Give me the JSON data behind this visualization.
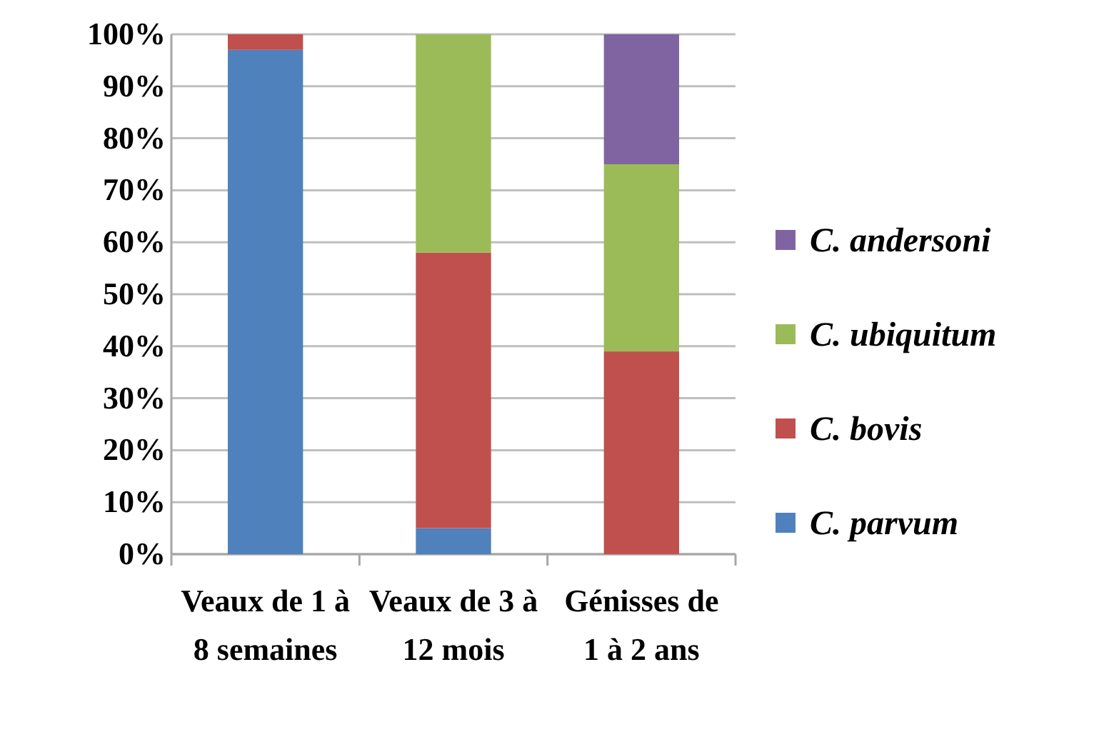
{
  "chart_data": {
    "type": "bar",
    "stacked": true,
    "categories": [
      "Veaux de 1 à 8 semaines",
      "Veaux de 3 à 12 mois",
      "Génisses de 1 à 2 ans"
    ],
    "series": [
      {
        "name": "C. parvum",
        "color": "#4f81bd",
        "values": [
          97,
          5,
          0
        ]
      },
      {
        "name": "C. bovis",
        "color": "#c0504d",
        "values": [
          3,
          53,
          39
        ]
      },
      {
        "name": "C. ubiquitum",
        "color": "#9bbb59",
        "values": [
          0,
          42,
          36
        ]
      },
      {
        "name": "C. andersoni",
        "color": "#8064a2",
        "values": [
          0,
          0,
          25
        ]
      }
    ],
    "ylim": [
      0,
      100
    ],
    "yticks": [
      {
        "value": 0,
        "label": "0%"
      },
      {
        "value": 10,
        "label": "10%"
      },
      {
        "value": 20,
        "label": "20%"
      },
      {
        "value": 30,
        "label": "30%"
      },
      {
        "value": 40,
        "label": "40%"
      },
      {
        "value": 50,
        "label": "50%"
      },
      {
        "value": 60,
        "label": "60%"
      },
      {
        "value": 70,
        "label": "70%"
      },
      {
        "value": 80,
        "label": "80%"
      },
      {
        "value": 90,
        "label": "90%"
      },
      {
        "value": 100,
        "label": "100%"
      }
    ],
    "grid": "y",
    "legend": "right"
  }
}
